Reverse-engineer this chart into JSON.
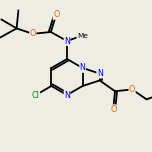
{
  "bg_color": "#eeede4",
  "bond_color": "#000000",
  "N_color": "#0000ff",
  "O_color": "#dd6600",
  "Cl_color": "#008800",
  "bond_width": 1.3,
  "figsize": [
    1.52,
    1.52
  ],
  "dpi": 100,
  "xlim": [
    0,
    152
  ],
  "ylim": [
    0,
    152
  ]
}
